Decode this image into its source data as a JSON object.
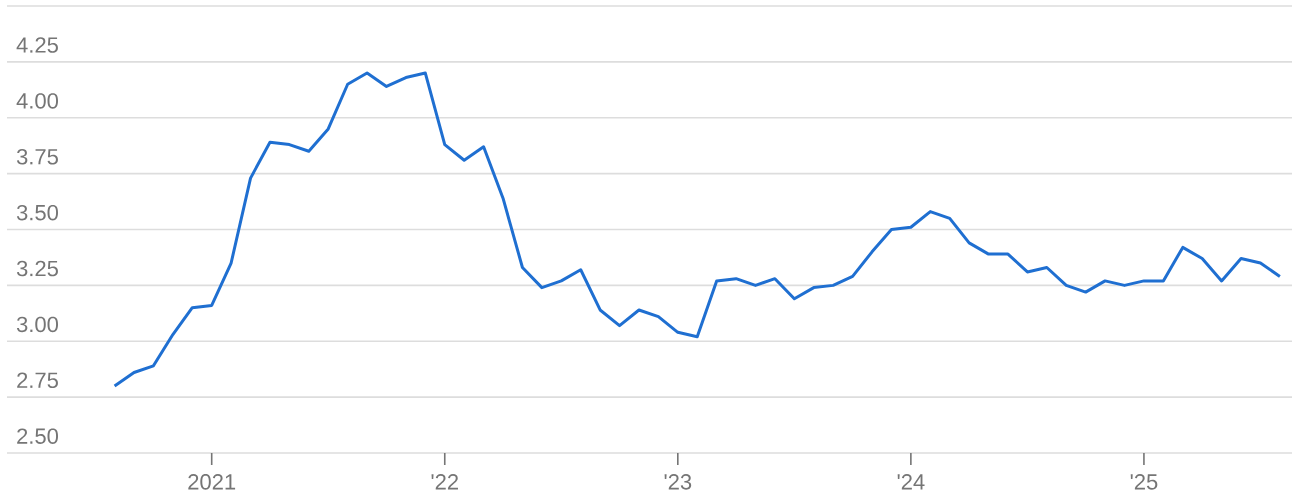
{
  "chart_data": {
    "type": "line",
    "x": [
      "2020-08",
      "2020-09",
      "2020-10",
      "2020-11",
      "2020-12",
      "2021-01",
      "2021-02",
      "2021-03",
      "2021-04",
      "2021-05",
      "2021-06",
      "2021-07",
      "2021-08",
      "2021-09",
      "2021-10",
      "2021-11",
      "2021-12",
      "2022-01",
      "2022-02",
      "2022-03",
      "2022-04",
      "2022-05",
      "2022-06",
      "2022-07",
      "2022-08",
      "2022-09",
      "2022-10",
      "2022-11",
      "2022-12",
      "2023-01",
      "2023-02",
      "2023-03",
      "2023-04",
      "2023-05",
      "2023-06",
      "2023-07",
      "2023-08",
      "2023-09",
      "2023-10",
      "2023-11",
      "2023-12",
      "2024-01",
      "2024-02",
      "2024-03",
      "2024-04",
      "2024-05",
      "2024-06",
      "2024-07",
      "2024-08",
      "2024-09",
      "2024-10",
      "2024-11",
      "2024-12",
      "2025-01",
      "2025-02",
      "2025-03",
      "2025-04",
      "2025-05",
      "2025-06",
      "2025-07",
      "2025-08"
    ],
    "series": [
      {
        "color": "#1f6fd1",
        "values": [
          2.8,
          2.86,
          2.89,
          3.03,
          3.15,
          3.16,
          3.35,
          3.73,
          3.89,
          3.88,
          3.85,
          3.95,
          4.15,
          4.2,
          4.14,
          4.18,
          4.2,
          3.88,
          3.81,
          3.87,
          3.64,
          3.33,
          3.24,
          3.27,
          3.32,
          3.14,
          3.07,
          3.14,
          3.11,
          3.04,
          3.02,
          3.27,
          3.28,
          3.25,
          3.28,
          3.19,
          3.24,
          3.25,
          3.29,
          3.4,
          3.5,
          3.51,
          3.58,
          3.55,
          3.44,
          3.39,
          3.39,
          3.31,
          3.33,
          3.25,
          3.22,
          3.27,
          3.25,
          3.27,
          3.27,
          3.42,
          3.37,
          3.27,
          3.37,
          3.35,
          3.29
        ]
      }
    ],
    "xlim": [
      "2020-02-15",
      "2025-08-20"
    ],
    "xticks": [
      {
        "value": "2021",
        "label": "2021"
      },
      {
        "value": "2022",
        "label": "'22"
      },
      {
        "value": "2023",
        "label": "'23"
      },
      {
        "value": "2024",
        "label": "'24"
      },
      {
        "value": "2025",
        "label": "'25"
      }
    ],
    "ylim": [
      2.5,
      4.5
    ],
    "yticks": [
      {
        "value": 2.5,
        "label": "2.50"
      },
      {
        "value": 2.75,
        "label": "2.75"
      },
      {
        "value": 3.0,
        "label": "3.00"
      },
      {
        "value": 3.25,
        "label": "3.25"
      },
      {
        "value": 3.5,
        "label": "3.50"
      },
      {
        "value": 3.75,
        "label": "3.75"
      },
      {
        "value": 4.0,
        "label": "4.00"
      },
      {
        "value": 4.25,
        "label": "4.25"
      },
      {
        "value": 4.5,
        "label": null
      }
    ],
    "grid": "y",
    "marker": "none",
    "line_style": "solid"
  }
}
